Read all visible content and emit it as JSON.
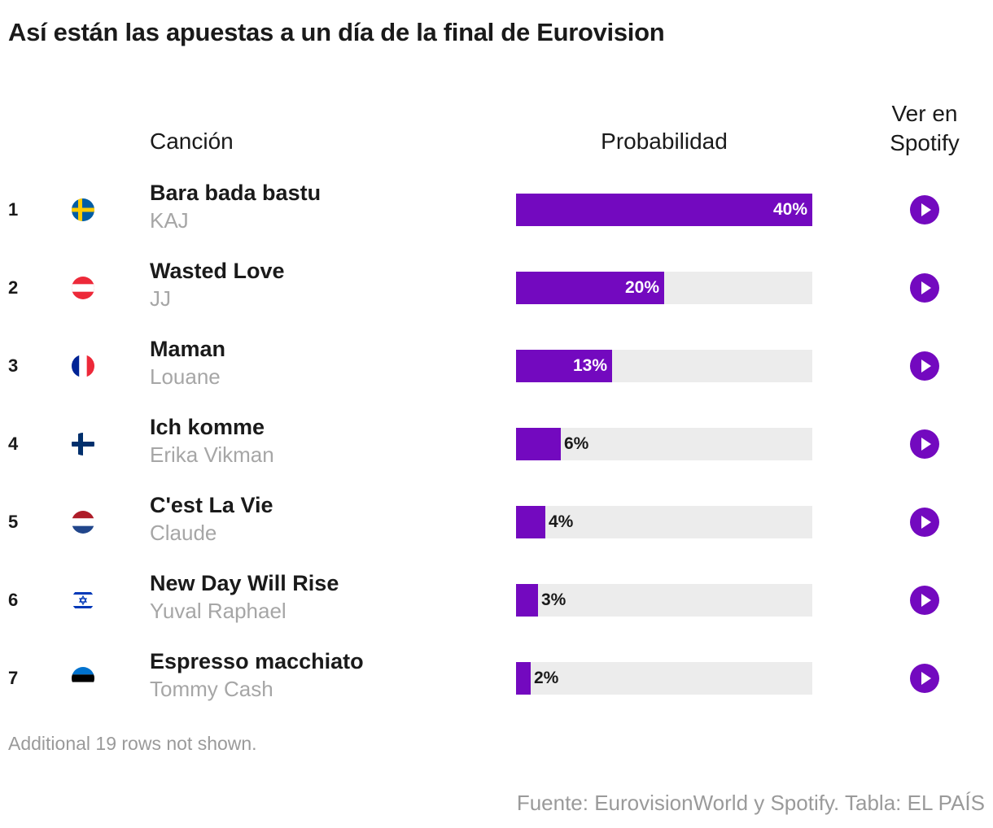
{
  "title": "Así están las apuestas a un día de la final de Eurovision",
  "headers": {
    "song": "Canción",
    "probability": "Probabilidad",
    "spotify": "Ver en Spotify"
  },
  "chart_data": {
    "type": "bar",
    "title": "Así están las apuestas a un día de la final de Eurovision",
    "ylim": [
      0,
      40
    ],
    "categories": [
      "Bara bada bastu",
      "Wasted Love",
      "Maman",
      "Ich komme",
      "C'est La Vie",
      "New Day Will Rise",
      "Espresso macchiato"
    ],
    "values": [
      40,
      20,
      13,
      6,
      4,
      3,
      2
    ],
    "rows": [
      {
        "rank": "1",
        "country": "Sweden",
        "flag": "sweden-flag-icon",
        "song": "Bara bada bastu",
        "artist": "KAJ",
        "value": 40,
        "label": "40%"
      },
      {
        "rank": "2",
        "country": "Austria",
        "flag": "austria-flag-icon",
        "song": "Wasted Love",
        "artist": "JJ",
        "value": 20,
        "label": "20%"
      },
      {
        "rank": "3",
        "country": "France",
        "flag": "france-flag-icon",
        "song": "Maman",
        "artist": "Louane",
        "value": 13,
        "label": "13%"
      },
      {
        "rank": "4",
        "country": "Finland",
        "flag": "finland-flag-icon",
        "song": "Ich komme",
        "artist": "Erika Vikman",
        "value": 6,
        "label": "6%"
      },
      {
        "rank": "5",
        "country": "Netherlands",
        "flag": "netherlands-flag-icon",
        "song": "C'est La Vie",
        "artist": "Claude",
        "value": 4,
        "label": "4%"
      },
      {
        "rank": "6",
        "country": "Israel",
        "flag": "israel-flag-icon",
        "song": "New Day Will Rise",
        "artist": "Yuval Raphael",
        "value": 3,
        "label": "3%"
      },
      {
        "rank": "7",
        "country": "Estonia",
        "flag": "estonia-flag-icon",
        "song": "Espresso macchiato",
        "artist": "Tommy Cash",
        "value": 2,
        "label": "2%"
      }
    ]
  },
  "colors": {
    "bar": "#7309bf",
    "track": "#ececec",
    "muted": "#a6a6a6"
  },
  "footer": {
    "note": "Additional 19 rows not shown.",
    "source": "Fuente: EurovisionWorld y Spotify. Tabla: EL PAÍS"
  }
}
